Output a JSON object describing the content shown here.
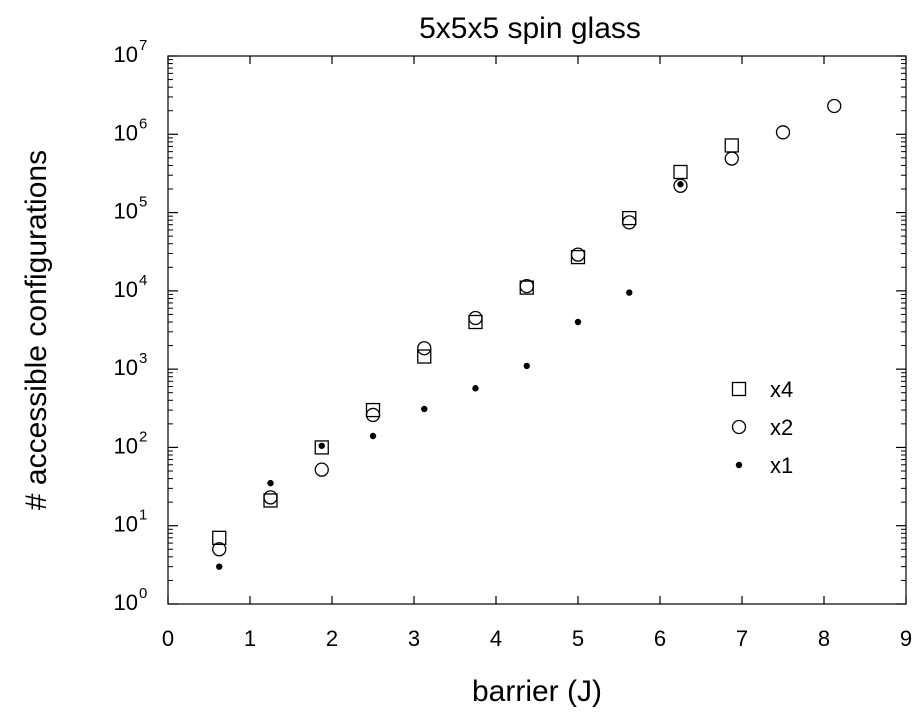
{
  "chart_data": {
    "type": "scatter",
    "title": "5x5x5  spin glass",
    "xlabel": "barrier  (J)",
    "ylabel": "# accessible configurations",
    "xlim": [
      0,
      9
    ],
    "ylim": [
      1,
      10000000
    ],
    "yscale": "log",
    "x_ticks": [
      "0",
      "1",
      "2",
      "3",
      "4",
      "5",
      "6",
      "7",
      "8",
      "9"
    ],
    "y_ticks": [
      {
        "base": "10",
        "exp": "0"
      },
      {
        "base": "10",
        "exp": "1"
      },
      {
        "base": "10",
        "exp": "2"
      },
      {
        "base": "10",
        "exp": "3"
      },
      {
        "base": "10",
        "exp": "4"
      },
      {
        "base": "10",
        "exp": "5"
      },
      {
        "base": "10",
        "exp": "6"
      },
      {
        "base": "10",
        "exp": "7"
      }
    ],
    "legend_position": "right",
    "series": [
      {
        "name": "x4",
        "marker": "square-open",
        "x": [
          0.625,
          1.25,
          1.875,
          2.5,
          3.125,
          3.75,
          4.375,
          5.0,
          5.625,
          6.25,
          6.875
        ],
        "y": [
          7,
          21,
          100,
          300,
          1450,
          4000,
          11000,
          27000,
          85000,
          330000,
          720000
        ]
      },
      {
        "name": "x2",
        "marker": "circle-open",
        "x": [
          0.625,
          1.25,
          1.875,
          2.5,
          3.125,
          3.75,
          4.375,
          5.0,
          5.625,
          6.25,
          6.875,
          7.5,
          8.125
        ],
        "y": [
          5,
          23,
          52,
          260,
          1850,
          4500,
          11500,
          29000,
          75000,
          220000,
          490000,
          1060000,
          2300000
        ]
      },
      {
        "name": "x1",
        "marker": "dot-filled",
        "x": [
          0.625,
          1.25,
          1.875,
          2.5,
          3.125,
          3.75,
          4.375,
          5.0,
          5.625,
          6.25
        ],
        "y": [
          3,
          35,
          105,
          140,
          310,
          570,
          1100,
          4000,
          9500,
          230000
        ]
      }
    ]
  }
}
